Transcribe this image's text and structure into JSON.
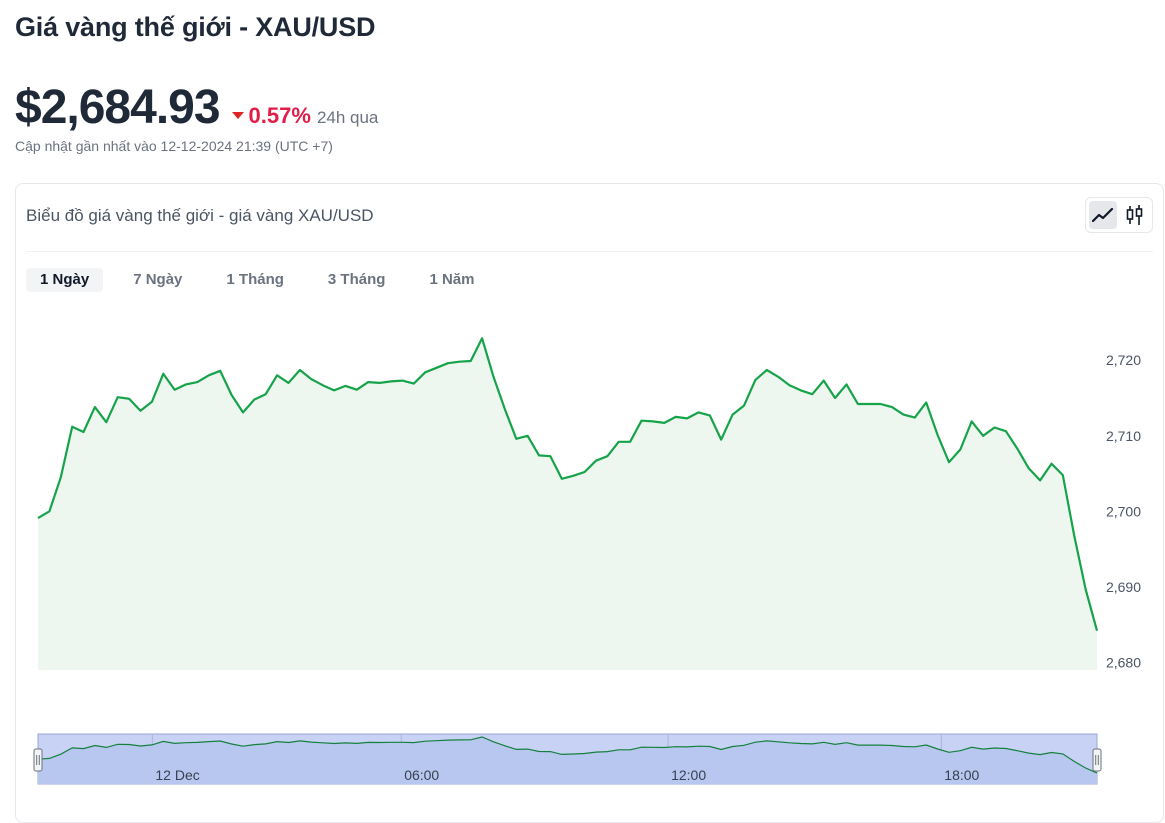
{
  "header": {
    "title": "Giá vàng thế giới - XAU/USD",
    "price": "$2,684.93",
    "change": "0.57%",
    "change_color": "#e11d48",
    "period": "24h qua",
    "updated": "Cập nhật gần nhất vào 12-12-2024 21:39 (UTC +7)"
  },
  "card": {
    "title": "Biểu đồ giá vàng thế giới - giá vàng XAU/USD",
    "chart_types": [
      {
        "icon": "line-chart-icon",
        "active": true
      },
      {
        "icon": "candlestick-icon",
        "active": false
      }
    ],
    "tabs": [
      {
        "label": "1 Ngày",
        "active": true
      },
      {
        "label": "7 Ngày",
        "active": false
      },
      {
        "label": "1 Tháng",
        "active": false
      },
      {
        "label": "3 Tháng",
        "active": false
      },
      {
        "label": "1 Năm",
        "active": false
      }
    ]
  },
  "chart_data": {
    "type": "area",
    "line_color": "#16a34a",
    "fill_color": "#edf7f0",
    "ylim": [
      2679,
      2724
    ],
    "y_ticks": [
      2680,
      2690,
      2700,
      2710,
      2720
    ],
    "y_tick_labels": [
      "2,680",
      "2,690",
      "2,700",
      "2,710",
      "2,720"
    ],
    "values": [
      2699.1,
      2700.0,
      2704.5,
      2711.2,
      2710.5,
      2713.8,
      2711.8,
      2715.1,
      2714.9,
      2713.3,
      2714.5,
      2718.2,
      2716.1,
      2716.8,
      2717.1,
      2718.0,
      2718.6,
      2715.4,
      2713.1,
      2714.8,
      2715.5,
      2718.0,
      2717.0,
      2718.7,
      2717.5,
      2716.7,
      2716.0,
      2716.6,
      2716.1,
      2717.1,
      2717.0,
      2717.2,
      2717.3,
      2716.9,
      2718.4,
      2719.0,
      2719.6,
      2719.8,
      2719.9,
      2722.9,
      2717.8,
      2713.5,
      2709.6,
      2710.0,
      2707.4,
      2707.3,
      2704.3,
      2704.7,
      2705.2,
      2706.7,
      2707.3,
      2709.2,
      2709.2,
      2712.0,
      2711.9,
      2711.7,
      2712.5,
      2712.3,
      2713.1,
      2712.7,
      2709.5,
      2712.8,
      2714.0,
      2717.4,
      2718.7,
      2717.8,
      2716.7,
      2716.0,
      2715.5,
      2717.3,
      2715.0,
      2716.8,
      2714.2,
      2714.2,
      2714.2,
      2713.8,
      2712.8,
      2712.4,
      2714.4,
      2710.1,
      2706.5,
      2708.2,
      2711.9,
      2710.0,
      2711.1,
      2710.6,
      2708.3,
      2705.7,
      2704.1,
      2706.3,
      2704.8,
      2696.8,
      2689.7,
      2684.2
    ],
    "navigator": {
      "ticks": [
        {
          "label": "12 Dec",
          "pos": 0.108
        },
        {
          "label": "06:00",
          "pos": 0.343
        },
        {
          "label": "12:00",
          "pos": 0.595
        },
        {
          "label": "18:00",
          "pos": 0.853
        }
      ]
    }
  }
}
